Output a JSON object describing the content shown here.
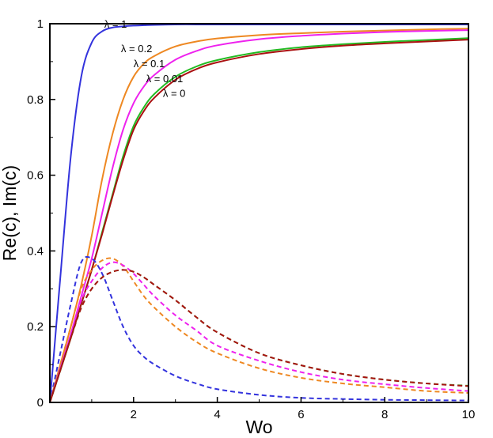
{
  "chart_data": {
    "type": "line",
    "title": "",
    "xlabel": "Wo",
    "ylabel": "Re(c), Im(c)",
    "xlim": [
      0,
      10
    ],
    "ylim": [
      0,
      1
    ],
    "xticks": [
      2,
      4,
      6,
      8,
      10
    ],
    "xtick_labels": [
      "2",
      "4",
      "6",
      "8",
      "10"
    ],
    "yticks": [
      0,
      0.2,
      0.4,
      0.6,
      0.8,
      1
    ],
    "ytick_labels": [
      "0",
      "0.2",
      "0.4",
      "0.6",
      "0.8",
      "1"
    ],
    "grid": false,
    "legend": "none",
    "x": [
      0,
      0.25,
      0.5,
      0.75,
      1,
      1.25,
      1.5,
      1.75,
      2,
      2.25,
      2.5,
      3,
      3.5,
      4,
      5,
      6,
      7,
      8,
      9,
      10
    ],
    "series": [
      {
        "name": "Re(c), λ = 1",
        "color": "#3333dd",
        "dash": "solid",
        "lambda": 1,
        "values": [
          0,
          0.33,
          0.65,
          0.86,
          0.95,
          0.98,
          0.99,
          0.993,
          0.995,
          0.996,
          0.997,
          0.998,
          0.998,
          0.998,
          0.998,
          0.998,
          0.998,
          0.998,
          0.998,
          0.998
        ]
      },
      {
        "name": "Re(c), λ = 0.2",
        "color": "#ee8822",
        "dash": "solid",
        "lambda": 0.2,
        "values": [
          0,
          0.1,
          0.2,
          0.31,
          0.44,
          0.59,
          0.71,
          0.8,
          0.86,
          0.895,
          0.915,
          0.94,
          0.953,
          0.961,
          0.97,
          0.975,
          0.979,
          0.982,
          0.985,
          0.987
        ]
      },
      {
        "name": "Re(c), λ = 0.1",
        "color": "#ee22ee",
        "dash": "solid",
        "lambda": 0.1,
        "values": [
          0,
          0.09,
          0.18,
          0.28,
          0.38,
          0.5,
          0.62,
          0.72,
          0.79,
          0.835,
          0.865,
          0.905,
          0.928,
          0.943,
          0.959,
          0.968,
          0.974,
          0.978,
          0.981,
          0.983
        ]
      },
      {
        "name": "Re(c), λ = 0.01",
        "color": "#22bb22",
        "dash": "solid",
        "lambda": 0.01,
        "values": [
          0,
          0.085,
          0.17,
          0.26,
          0.35,
          0.45,
          0.55,
          0.65,
          0.73,
          0.78,
          0.815,
          0.86,
          0.887,
          0.904,
          0.925,
          0.938,
          0.946,
          0.952,
          0.957,
          0.962
        ]
      },
      {
        "name": "Re(c), λ = 0",
        "color": "#aa1111",
        "dash": "solid",
        "lambda": 0,
        "values": [
          0,
          0.085,
          0.17,
          0.26,
          0.35,
          0.445,
          0.545,
          0.64,
          0.72,
          0.77,
          0.805,
          0.852,
          0.88,
          0.898,
          0.92,
          0.933,
          0.942,
          0.948,
          0.953,
          0.958
        ]
      },
      {
        "name": "Im(c), λ = 1",
        "color": "#3333dd",
        "dash": "dashed",
        "lambda": 1,
        "values": [
          0,
          0.13,
          0.26,
          0.37,
          0.38,
          0.34,
          0.27,
          0.2,
          0.15,
          0.12,
          0.1,
          0.07,
          0.05,
          0.035,
          0.02,
          0.012,
          0.009,
          0.007,
          0.006,
          0.005
        ]
      },
      {
        "name": "Im(c), λ = 0.2",
        "color": "#ee8822",
        "dash": "dashed",
        "lambda": 0.2,
        "values": [
          0,
          0.1,
          0.2,
          0.3,
          0.35,
          0.375,
          0.38,
          0.36,
          0.32,
          0.28,
          0.25,
          0.2,
          0.16,
          0.13,
          0.09,
          0.065,
          0.05,
          0.04,
          0.03,
          0.025
        ]
      },
      {
        "name": "Im(c), λ = 0.1",
        "color": "#ee22ee",
        "dash": "dashed",
        "lambda": 0.1,
        "values": [
          0,
          0.09,
          0.18,
          0.27,
          0.32,
          0.355,
          0.37,
          0.362,
          0.34,
          0.31,
          0.28,
          0.23,
          0.19,
          0.15,
          0.11,
          0.08,
          0.06,
          0.048,
          0.038,
          0.03
        ]
      },
      {
        "name": "Im(c), λ = 0.01",
        "color": "#22bb22",
        "dash": "dashed",
        "lambda": 0.01,
        "values": [
          0,
          0.085,
          0.17,
          0.25,
          0.3,
          0.33,
          0.345,
          0.35,
          0.345,
          0.33,
          0.31,
          0.27,
          0.225,
          0.185,
          0.13,
          0.098,
          0.075,
          0.06,
          0.05,
          0.044
        ]
      },
      {
        "name": "Im(c), λ = 0",
        "color": "#aa1111",
        "dash": "dashed",
        "lambda": 0,
        "values": [
          0,
          0.085,
          0.17,
          0.25,
          0.3,
          0.33,
          0.345,
          0.35,
          0.345,
          0.33,
          0.31,
          0.27,
          0.225,
          0.185,
          0.13,
          0.098,
          0.075,
          0.06,
          0.05,
          0.043
        ]
      }
    ],
    "annotations": [
      {
        "text": "λ = 1",
        "x": 1.3,
        "y": 0.99
      },
      {
        "text": "λ = 0.2",
        "x": 1.7,
        "y": 0.925
      },
      {
        "text": "λ = 0.1",
        "x": 2.0,
        "y": 0.885
      },
      {
        "text": "λ = 0.01",
        "x": 2.3,
        "y": 0.845
      },
      {
        "text": "λ = 0",
        "x": 2.7,
        "y": 0.807
      }
    ]
  }
}
